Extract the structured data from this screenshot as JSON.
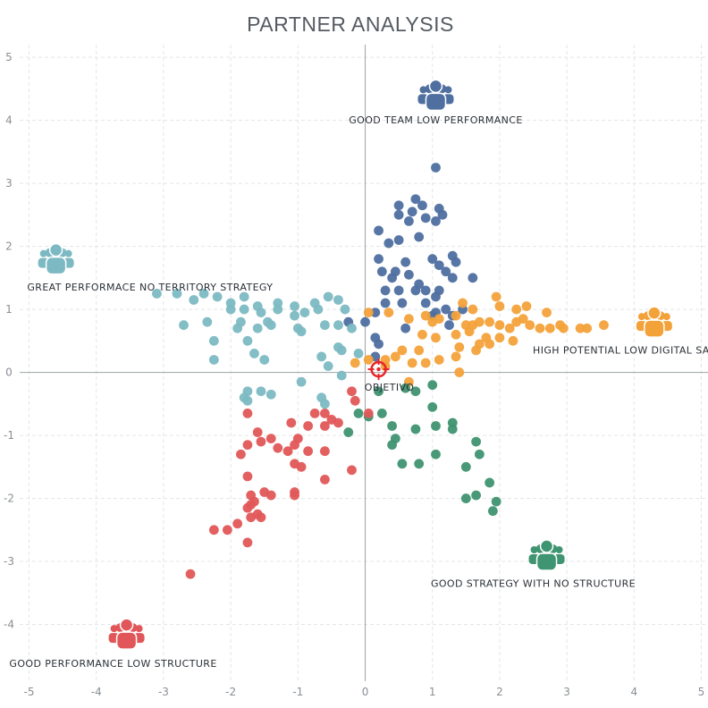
{
  "chart_data": {
    "type": "scatter",
    "title": "PARTNER ANALYSIS",
    "xlim": [
      -5.3,
      5.1
    ],
    "ylim": [
      -4.9,
      5.2
    ],
    "xticks": [
      -5,
      -4,
      -3,
      -2,
      -1,
      0,
      1,
      2,
      3,
      4,
      5
    ],
    "yticks": [
      5,
      4,
      3,
      2,
      1,
      0,
      -1,
      -2,
      -3,
      -4
    ],
    "grid": true,
    "colors": {
      "team": "#4e6fa0",
      "territory": "#7cb9c2",
      "potential": "#f3a23a",
      "strategy": "#3f9471",
      "structure": "#e15759",
      "target": "#e8242a"
    },
    "segments": [
      {
        "key": "team",
        "label": "GOOD TEAM LOW PERFORMANCE",
        "icon": "team-icon",
        "icon_pos": [
          1.05,
          4.4
        ],
        "label_pos": [
          1.05,
          3.95
        ],
        "label_anchor": "middle"
      },
      {
        "key": "territory",
        "label": "GREAT PERFORMACE  NO TERRITORY STRATEGY",
        "icon": "team-icon",
        "icon_pos": [
          -4.6,
          1.8
        ],
        "label_pos": [
          -3.2,
          1.3
        ],
        "label_anchor": "middle"
      },
      {
        "key": "potential",
        "label": "HIGH POTENTIAL LOW DIGITAL SALES",
        "icon": "team-icon",
        "icon_pos": [
          4.3,
          0.8
        ],
        "label_pos": [
          3.95,
          0.3
        ],
        "label_anchor": "middle"
      },
      {
        "key": "strategy",
        "label": "GOOD STRATEGY WITH NO STRUCTURE",
        "icon": "team-icon",
        "icon_pos": [
          2.7,
          -2.9
        ],
        "label_pos": [
          2.5,
          -3.4
        ],
        "label_anchor": "middle"
      },
      {
        "key": "structure",
        "label": "GOOD PERFORMANCE LOW STRUCTURE",
        "icon": "team-icon",
        "icon_pos": [
          -3.55,
          -4.15
        ],
        "label_pos": [
          -3.75,
          -4.67
        ],
        "label_anchor": "middle"
      }
    ],
    "target": {
      "label": "OBJETIVO",
      "x": 0.2,
      "y": 0.05
    },
    "series": [
      {
        "key": "team",
        "points": [
          [
            1.05,
            3.25
          ],
          [
            0.75,
            2.75
          ],
          [
            0.5,
            2.65
          ],
          [
            0.7,
            2.55
          ],
          [
            0.85,
            2.65
          ],
          [
            1.1,
            2.6
          ],
          [
            1.05,
            2.4
          ],
          [
            0.5,
            2.5
          ],
          [
            0.65,
            2.4
          ],
          [
            0.9,
            2.45
          ],
          [
            1.15,
            2.5
          ],
          [
            0.2,
            2.25
          ],
          [
            0.35,
            2.05
          ],
          [
            0.5,
            2.1
          ],
          [
            0.8,
            2.15
          ],
          [
            0.2,
            1.8
          ],
          [
            0.25,
            1.6
          ],
          [
            0.45,
            1.6
          ],
          [
            0.6,
            1.75
          ],
          [
            0.65,
            1.55
          ],
          [
            0.4,
            1.5
          ],
          [
            1.0,
            1.8
          ],
          [
            1.1,
            1.7
          ],
          [
            1.3,
            1.85
          ],
          [
            1.35,
            1.75
          ],
          [
            1.2,
            1.6
          ],
          [
            1.3,
            1.5
          ],
          [
            1.6,
            1.5
          ],
          [
            0.3,
            1.3
          ],
          [
            0.5,
            1.3
          ],
          [
            0.75,
            1.3
          ],
          [
            0.9,
            1.3
          ],
          [
            1.1,
            1.3
          ],
          [
            0.8,
            1.4
          ],
          [
            0.3,
            1.1
          ],
          [
            0.55,
            1.1
          ],
          [
            0.9,
            1.1
          ],
          [
            1.05,
            1.2
          ],
          [
            1.2,
            1.0
          ],
          [
            1.3,
            0.9
          ],
          [
            1.45,
            1.0
          ],
          [
            1.25,
            0.75
          ],
          [
            1.05,
            0.95
          ],
          [
            0.0,
            0.8
          ],
          [
            0.15,
            0.95
          ],
          [
            0.6,
            0.7
          ],
          [
            1.0,
            0.9
          ],
          [
            0.15,
            0.55
          ],
          [
            0.2,
            0.45
          ],
          [
            0.15,
            0.25
          ],
          [
            -0.25,
            0.8
          ]
        ]
      },
      {
        "key": "territory",
        "points": [
          [
            -3.1,
            1.25
          ],
          [
            -2.8,
            1.25
          ],
          [
            -2.55,
            1.15
          ],
          [
            -2.4,
            1.25
          ],
          [
            -2.2,
            1.2
          ],
          [
            -2.0,
            1.1
          ],
          [
            -1.8,
            1.2
          ],
          [
            -1.6,
            1.05
          ],
          [
            -1.3,
            1.1
          ],
          [
            -1.05,
            1.05
          ],
          [
            -0.75,
            1.1
          ],
          [
            -0.55,
            1.2
          ],
          [
            -0.4,
            1.15
          ],
          [
            -0.3,
            1.0
          ],
          [
            -0.7,
            1.0
          ],
          [
            -1.3,
            1.0
          ],
          [
            -2.0,
            1.0
          ],
          [
            -1.8,
            1.0
          ],
          [
            -1.55,
            0.95
          ],
          [
            -0.9,
            0.95
          ],
          [
            -1.05,
            0.9
          ],
          [
            -1.45,
            0.8
          ],
          [
            -2.7,
            0.75
          ],
          [
            -2.35,
            0.8
          ],
          [
            -1.85,
            0.8
          ],
          [
            -1.9,
            0.7
          ],
          [
            -1.6,
            0.7
          ],
          [
            -1.4,
            0.75
          ],
          [
            -1.0,
            0.7
          ],
          [
            -0.95,
            0.65
          ],
          [
            -0.6,
            0.75
          ],
          [
            -0.4,
            0.75
          ],
          [
            -0.2,
            0.7
          ],
          [
            -2.25,
            0.5
          ],
          [
            -1.75,
            0.5
          ],
          [
            -1.65,
            0.3
          ],
          [
            -2.25,
            0.2
          ],
          [
            -1.5,
            0.2
          ],
          [
            -0.65,
            0.25
          ],
          [
            -0.4,
            0.4
          ],
          [
            -0.35,
            0.35
          ],
          [
            -0.55,
            0.1
          ],
          [
            -0.1,
            0.3
          ],
          [
            -0.35,
            -0.05
          ],
          [
            -0.95,
            -0.15
          ],
          [
            -1.75,
            -0.3
          ],
          [
            -1.8,
            -0.4
          ],
          [
            -1.75,
            -0.45
          ],
          [
            -1.55,
            -0.3
          ],
          [
            -1.4,
            -0.35
          ],
          [
            -0.65,
            -0.4
          ],
          [
            -0.6,
            -0.5
          ]
        ]
      },
      {
        "key": "potential",
        "points": [
          [
            0.05,
            0.95
          ],
          [
            0.35,
            0.95
          ],
          [
            0.65,
            0.85
          ],
          [
            0.9,
            0.9
          ],
          [
            1.1,
            0.85
          ],
          [
            1.35,
            0.9
          ],
          [
            1.45,
            1.1
          ],
          [
            1.6,
            1.0
          ],
          [
            1.95,
            1.2
          ],
          [
            2.0,
            1.05
          ],
          [
            2.25,
            1.0
          ],
          [
            2.4,
            1.05
          ],
          [
            2.7,
            0.95
          ],
          [
            1.5,
            0.75
          ],
          [
            1.6,
            0.75
          ],
          [
            1.7,
            0.8
          ],
          [
            1.85,
            0.8
          ],
          [
            2.0,
            0.75
          ],
          [
            2.15,
            0.7
          ],
          [
            2.25,
            0.8
          ],
          [
            2.35,
            0.85
          ],
          [
            2.45,
            0.75
          ],
          [
            2.6,
            0.7
          ],
          [
            2.75,
            0.7
          ],
          [
            2.9,
            0.75
          ],
          [
            2.95,
            0.7
          ],
          [
            3.2,
            0.7
          ],
          [
            3.3,
            0.7
          ],
          [
            3.55,
            0.75
          ],
          [
            1.0,
            0.8
          ],
          [
            0.85,
            0.6
          ],
          [
            1.05,
            0.55
          ],
          [
            1.35,
            0.6
          ],
          [
            1.55,
            0.65
          ],
          [
            1.8,
            0.55
          ],
          [
            2.0,
            0.55
          ],
          [
            2.2,
            0.5
          ],
          [
            1.85,
            0.45
          ],
          [
            1.7,
            0.45
          ],
          [
            1.65,
            0.35
          ],
          [
            1.4,
            0.4
          ],
          [
            1.35,
            0.25
          ],
          [
            1.1,
            0.2
          ],
          [
            0.8,
            0.35
          ],
          [
            0.55,
            0.35
          ],
          [
            0.45,
            0.25
          ],
          [
            0.3,
            0.2
          ],
          [
            0.7,
            0.15
          ],
          [
            0.9,
            0.15
          ],
          [
            1.4,
            0.0
          ],
          [
            0.65,
            -0.15
          ],
          [
            0.3,
            0.1
          ],
          [
            -0.15,
            0.15
          ],
          [
            0.05,
            0.2
          ]
        ]
      },
      {
        "key": "strategy",
        "points": [
          [
            0.2,
            -0.3
          ],
          [
            0.6,
            -0.25
          ],
          [
            1.0,
            -0.2
          ],
          [
            0.75,
            -0.3
          ],
          [
            0.05,
            -0.7
          ],
          [
            -0.1,
            -0.65
          ],
          [
            0.25,
            -0.65
          ],
          [
            0.4,
            -0.85
          ],
          [
            0.75,
            -0.9
          ],
          [
            1.05,
            -0.85
          ],
          [
            1.0,
            -0.55
          ],
          [
            1.3,
            -0.8
          ],
          [
            1.3,
            -0.9
          ],
          [
            0.45,
            -1.05
          ],
          [
            0.4,
            -1.15
          ],
          [
            0.55,
            -1.45
          ],
          [
            0.8,
            -1.45
          ],
          [
            1.05,
            -1.3
          ],
          [
            1.5,
            -1.5
          ],
          [
            1.65,
            -1.1
          ],
          [
            1.7,
            -1.3
          ],
          [
            1.85,
            -1.75
          ],
          [
            1.5,
            -2.0
          ],
          [
            1.65,
            -1.95
          ],
          [
            1.95,
            -2.05
          ],
          [
            1.9,
            -2.2
          ],
          [
            -0.25,
            -0.95
          ]
        ]
      },
      {
        "key": "structure",
        "points": [
          [
            -0.2,
            -0.3
          ],
          [
            -0.15,
            -0.45
          ],
          [
            0.05,
            -0.65
          ],
          [
            -0.6,
            -0.65
          ],
          [
            -0.75,
            -0.65
          ],
          [
            -0.5,
            -0.75
          ],
          [
            -0.4,
            -0.8
          ],
          [
            -0.6,
            -0.85
          ],
          [
            -0.85,
            -0.85
          ],
          [
            -1.1,
            -0.8
          ],
          [
            -1.0,
            -1.05
          ],
          [
            -1.05,
            -1.15
          ],
          [
            -1.15,
            -1.25
          ],
          [
            -0.85,
            -1.25
          ],
          [
            -0.6,
            -1.25
          ],
          [
            -1.4,
            -1.05
          ],
          [
            -1.3,
            -1.2
          ],
          [
            -1.75,
            -0.65
          ],
          [
            -1.6,
            -0.95
          ],
          [
            -1.55,
            -1.1
          ],
          [
            -1.75,
            -1.15
          ],
          [
            -1.85,
            -1.3
          ],
          [
            -1.05,
            -1.45
          ],
          [
            -0.95,
            -1.5
          ],
          [
            -0.2,
            -1.55
          ],
          [
            -0.6,
            -1.7
          ],
          [
            -1.05,
            -1.9
          ],
          [
            -1.05,
            -1.95
          ],
          [
            -1.5,
            -1.9
          ],
          [
            -1.4,
            -1.95
          ],
          [
            -1.75,
            -1.65
          ],
          [
            -1.7,
            -1.95
          ],
          [
            -1.65,
            -2.05
          ],
          [
            -1.7,
            -2.1
          ],
          [
            -1.75,
            -2.15
          ],
          [
            -1.6,
            -2.25
          ],
          [
            -1.7,
            -2.3
          ],
          [
            -1.55,
            -2.3
          ],
          [
            -1.9,
            -2.4
          ],
          [
            -2.05,
            -2.5
          ],
          [
            -2.25,
            -2.5
          ],
          [
            -1.75,
            -2.7
          ],
          [
            -2.6,
            -3.2
          ]
        ]
      }
    ]
  }
}
